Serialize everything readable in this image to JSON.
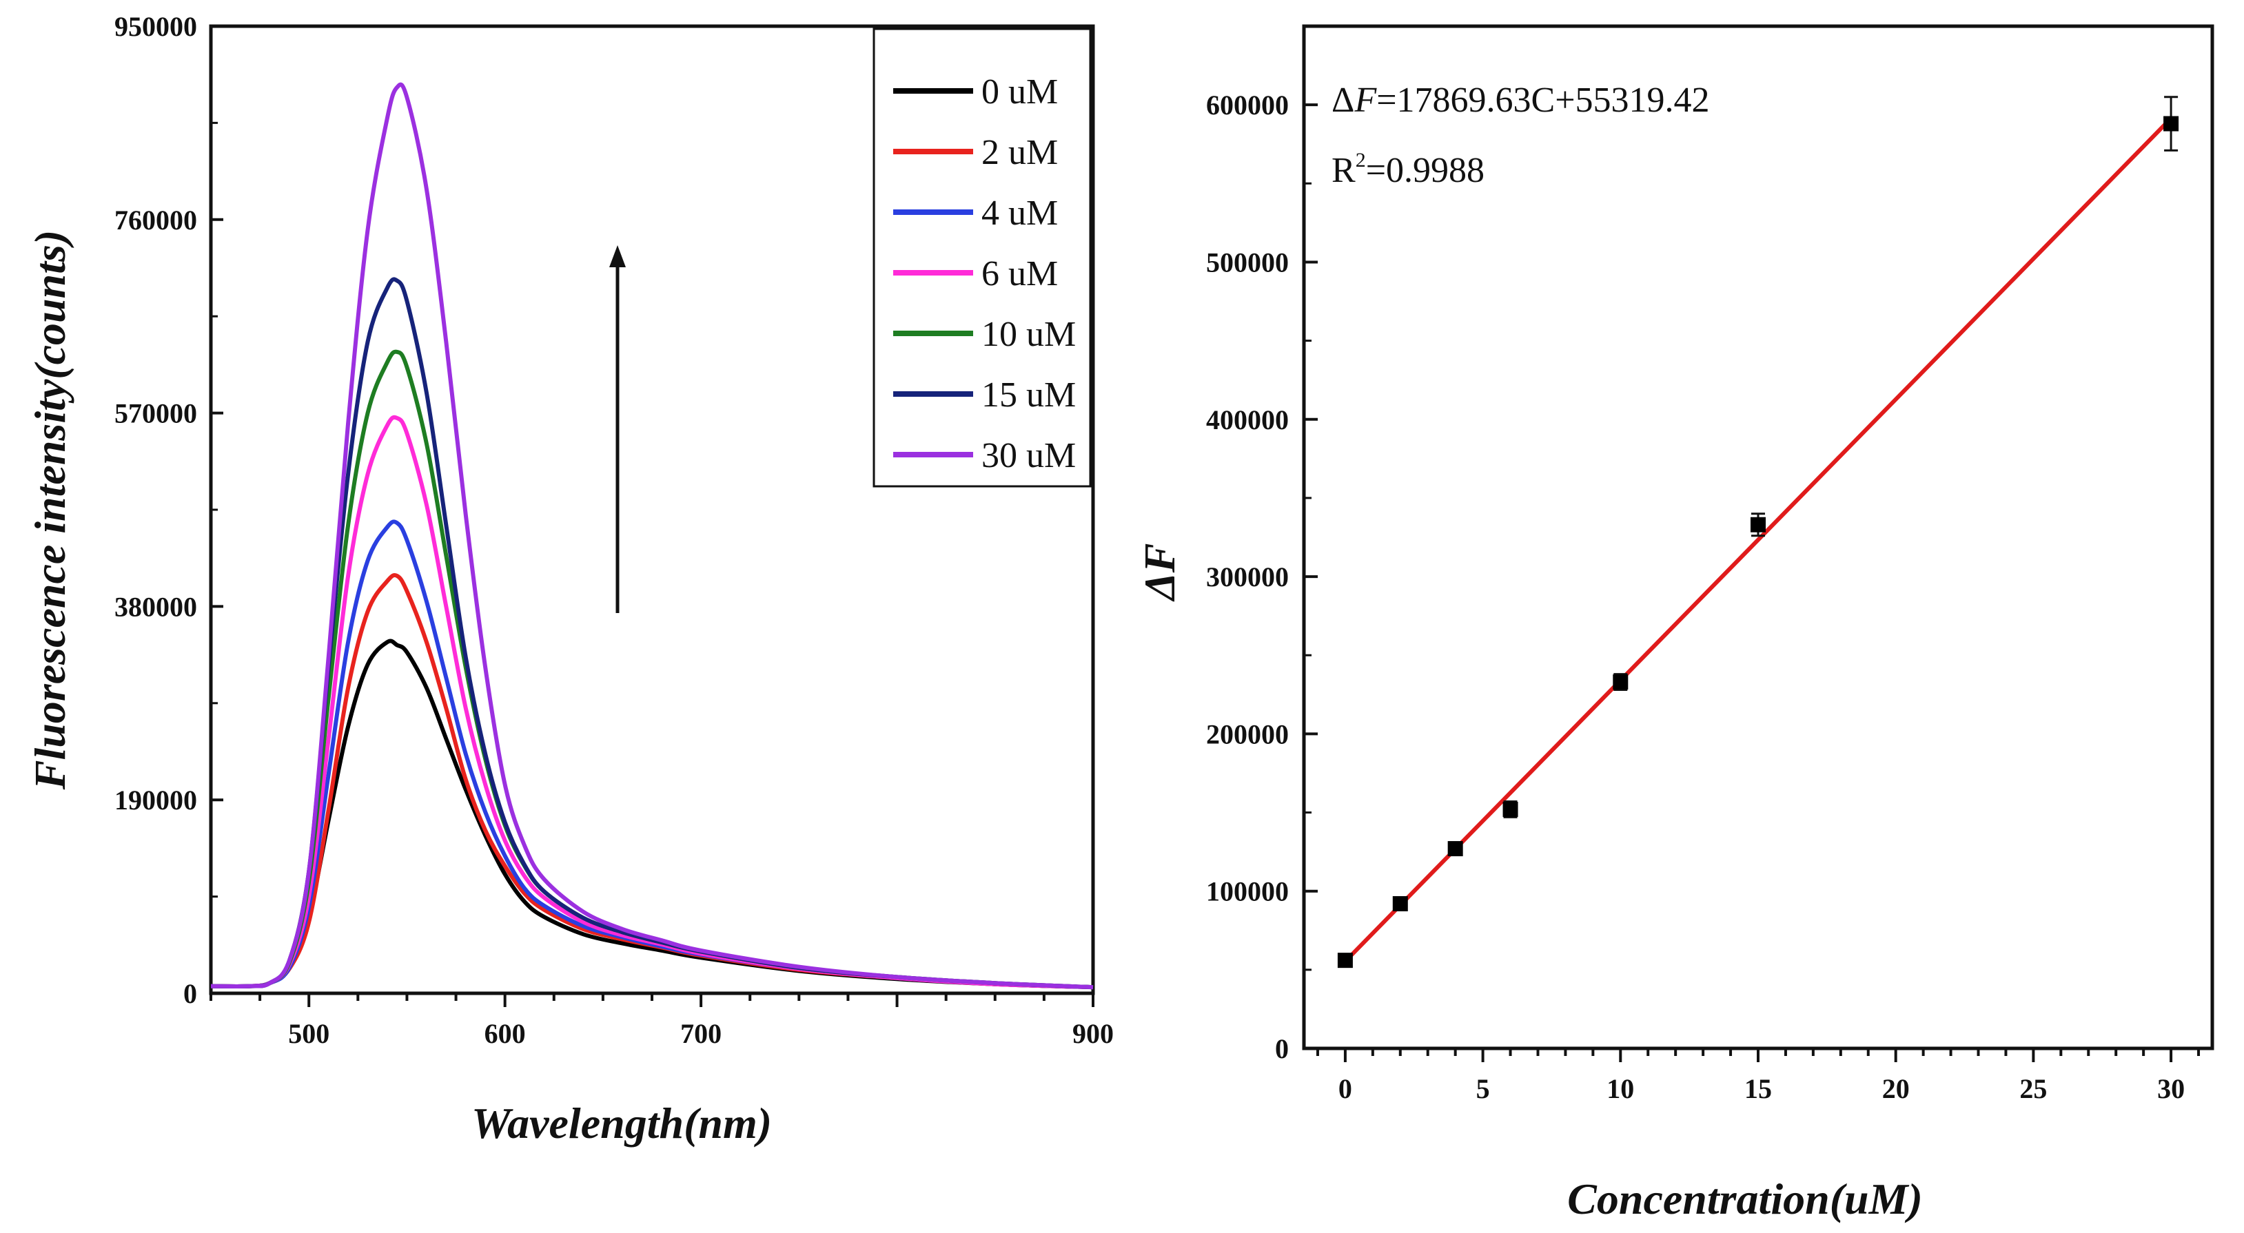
{
  "chart_data": [
    {
      "type": "line",
      "title": "",
      "xlabel": "Wavelength(nm)",
      "ylabel": "Fluorescence intensity(counts)",
      "xlim": [
        450,
        900
      ],
      "ylim": [
        0,
        950000
      ],
      "x_ticks": [
        500,
        600,
        700,
        900
      ],
      "x_tick_labels": [
        "500",
        "600",
        "700",
        "900"
      ],
      "y_ticks": [
        0,
        190000,
        380000,
        570000,
        760000,
        950000
      ],
      "y_tick_labels": [
        "0",
        "190000",
        "380000",
        "570000",
        "760000",
        "950000"
      ],
      "legend_position": "top-right",
      "annotation": "arrow pointing up (increasing concentration)",
      "x": [
        450,
        470,
        480,
        490,
        500,
        510,
        520,
        530,
        540,
        545,
        550,
        560,
        570,
        580,
        590,
        600,
        610,
        620,
        640,
        660,
        680,
        700,
        750,
        800,
        850,
        900
      ],
      "series": [
        {
          "name": "0 uM",
          "color": "#000000",
          "values": [
            7000,
            7000,
            10000,
            25000,
            75000,
            170000,
            262000,
            323000,
            345000,
            342000,
            335000,
            300000,
            250000,
            200000,
            155000,
            117000,
            90000,
            75000,
            58000,
            49000,
            42000,
            35000,
            22000,
            14000,
            9000,
            6000
          ]
        },
        {
          "name": "2 uM",
          "color": "#e8231e",
          "values": [
            7000,
            7000,
            10000,
            24000,
            70000,
            180000,
            300000,
            375000,
            405000,
            410000,
            395000,
            345000,
            280000,
            210000,
            160000,
            125000,
            98000,
            82000,
            63000,
            53000,
            45000,
            37000,
            23000,
            15000,
            9000,
            6000
          ]
        },
        {
          "name": "4 uM",
          "color": "#2a3fe0",
          "values": [
            7000,
            7000,
            10000,
            25000,
            85000,
            215000,
            345000,
            425000,
            458000,
            462000,
            445000,
            385000,
            310000,
            235000,
            178000,
            135000,
            103000,
            86000,
            66000,
            55000,
            46000,
            38000,
            24000,
            15000,
            9000,
            6000
          ]
        },
        {
          "name": "6 uM",
          "color": "#ff2bd8",
          "values": [
            7000,
            7000,
            10000,
            28000,
            95000,
            250000,
            410000,
            510000,
            558000,
            565000,
            550000,
            480000,
            380000,
            280000,
            205000,
            150000,
            115000,
            94000,
            70000,
            57000,
            48000,
            39000,
            24000,
            15000,
            9000,
            6000
          ]
        },
        {
          "name": "10 uM",
          "color": "#1e7d22",
          "values": [
            7000,
            7000,
            10000,
            30000,
            110000,
            290000,
            460000,
            570000,
            620000,
            630000,
            615000,
            540000,
            430000,
            320000,
            230000,
            165000,
            125000,
            100000,
            74000,
            60000,
            50000,
            41000,
            25000,
            16000,
            10000,
            6000
          ]
        },
        {
          "name": "15 uM",
          "color": "#16237a",
          "values": [
            7000,
            7000,
            10000,
            32000,
            120000,
            320000,
            510000,
            640000,
            693000,
            700000,
            680000,
            590000,
            460000,
            330000,
            235000,
            168000,
            126000,
            100000,
            74000,
            60000,
            50000,
            41000,
            25000,
            16000,
            10000,
            6000
          ]
        },
        {
          "name": "30 uM",
          "color": "#9b30e0",
          "values": [
            7000,
            7000,
            10000,
            32000,
            120000,
            330000,
            560000,
            750000,
            860000,
            890000,
            880000,
            790000,
            640000,
            470000,
            320000,
            205000,
            145000,
            112000,
            80000,
            63000,
            52000,
            42000,
            26000,
            16000,
            10000,
            6000
          ]
        }
      ]
    },
    {
      "type": "scatter",
      "title": "",
      "xlabel": "Concentration(uM)",
      "ylabel": "ΔF",
      "xlim": [
        -1.5,
        31.5
      ],
      "ylim": [
        0,
        650000
      ],
      "x_ticks": [
        0,
        5,
        10,
        15,
        20,
        25,
        30
      ],
      "x_tick_labels": [
        "0",
        "5",
        "10",
        "15",
        "20",
        "25",
        "30"
      ],
      "y_ticks": [
        0,
        100000,
        200000,
        300000,
        400000,
        500000,
        600000
      ],
      "y_tick_labels": [
        "0",
        "100000",
        "200000",
        "300000",
        "400000",
        "500000",
        "600000"
      ],
      "x": [
        0,
        2,
        4,
        6,
        10,
        15,
        30
      ],
      "y": [
        56000,
        92000,
        127000,
        152000,
        233000,
        333000,
        588000
      ],
      "error": [
        4000,
        4000,
        3000,
        5000,
        5000,
        7000,
        17000
      ],
      "point_color": "#000000",
      "fit": {
        "slope": 17869.63,
        "intercept": 55319.42,
        "x_range": [
          0,
          30
        ],
        "color": "#e01b1b"
      },
      "equation": {
        "prefix": "Δ",
        "var": "F",
        "rest": "=17869.63C+55319.42"
      },
      "r2": {
        "base": "R",
        "sup": "2",
        "rest": "=0.9988"
      }
    }
  ]
}
